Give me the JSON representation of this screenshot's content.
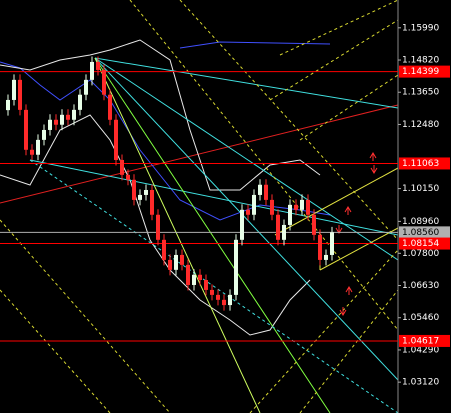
{
  "chart_data": {
    "type": "candlestick",
    "up_color": "#e8ffe8",
    "down_color": "#ff2a2a",
    "ylim": [
      1.02,
      1.17
    ],
    "yticks": [
      {
        "value": 1.1599,
        "label": "1.15990"
      },
      {
        "value": 1.1482,
        "label": "1.14820"
      },
      {
        "value": 1.1365,
        "label": "1.13650"
      },
      {
        "value": 1.1248,
        "label": "1.12480"
      },
      {
        "value": 1.1015,
        "label": "1.10150"
      },
      {
        "value": 1.0896,
        "label": "1.08960"
      },
      {
        "value": 1.078,
        "label": "1.07800"
      },
      {
        "value": 1.0663,
        "label": "1.06630"
      },
      {
        "value": 1.0546,
        "label": "1.05460"
      },
      {
        "value": 1.0429,
        "label": "1.04290"
      },
      {
        "value": 1.0312,
        "label": "1.03120"
      }
    ],
    "levels": [
      1.14399,
      1.11063,
      {
        "value": 1.0856,
        "label": "1.08560"
      },
      1.08154,
      1.04617
    ],
    "level_colors": [
      "#ff0000",
      "#ff0000",
      "#b0b0b0",
      "#ff0000",
      "#ff0000"
    ],
    "open": [
      1.13,
      1.1337,
      1.141,
      1.1301,
      1.1156,
      1.1138,
      1.1192,
      1.1228,
      1.1265,
      1.1247,
      1.1283,
      1.1265,
      1.1301,
      1.1356,
      1.141,
      1.1475,
      1.1446,
      1.1356,
      1.1265,
      1.1119,
      1.1065,
      1.1047,
      1.0974,
      1.0992,
      1.101,
      1.092,
      1.0829,
      1.0756,
      1.072,
      1.0774,
      1.0738,
      1.0665,
      1.0702,
      1.0683,
      1.0647,
      1.0629,
      1.0611,
      1.0592,
      1.0629,
      1.0829,
      1.0938,
      1.092,
      1.0992,
      1.1029,
      1.0974,
      1.092,
      1.0829,
      1.0883,
      1.0956,
      1.0938,
      1.0974,
      1.092,
      1.0847,
      1.0756,
      1.0774
    ],
    "high": [
      1.1357,
      1.143,
      1.143,
      1.1321,
      1.1176,
      1.1212,
      1.1248,
      1.1285,
      1.1285,
      1.1303,
      1.1303,
      1.1321,
      1.1376,
      1.143,
      1.1495,
      1.1495,
      1.1466,
      1.1376,
      1.1285,
      1.1139,
      1.1085,
      1.1067,
      1.1012,
      1.103,
      1.103,
      1.094,
      1.0849,
      1.0776,
      1.0794,
      1.0794,
      1.0758,
      1.0722,
      1.0722,
      1.0703,
      1.0667,
      1.0649,
      1.0631,
      1.0649,
      1.0849,
      1.0958,
      1.0958,
      1.1012,
      1.1049,
      1.1049,
      1.0994,
      1.094,
      1.0903,
      1.0976,
      1.0976,
      1.0994,
      1.0994,
      1.094,
      1.0867,
      1.0794,
      1.0876
    ],
    "low": [
      1.128,
      1.1317,
      1.1281,
      1.1136,
      1.1118,
      1.1118,
      1.1172,
      1.1208,
      1.1227,
      1.1227,
      1.1245,
      1.1245,
      1.1281,
      1.1336,
      1.139,
      1.1426,
      1.1336,
      1.1245,
      1.1099,
      1.1045,
      1.1027,
      1.0954,
      1.0954,
      1.0972,
      1.09,
      1.0809,
      1.0736,
      1.07,
      1.07,
      1.0718,
      1.0645,
      1.0645,
      1.0663,
      1.0627,
      1.0609,
      1.0591,
      1.0572,
      1.0572,
      1.0609,
      1.0809,
      1.09,
      1.09,
      1.0972,
      1.0954,
      1.09,
      1.0809,
      1.0809,
      1.0863,
      1.0918,
      1.0918,
      1.09,
      1.0827,
      1.0736,
      1.0736,
      1.0754
    ],
    "close": [
      1.1337,
      1.141,
      1.1301,
      1.1156,
      1.1138,
      1.1192,
      1.1228,
      1.1265,
      1.1247,
      1.1283,
      1.1265,
      1.1301,
      1.1356,
      1.141,
      1.1475,
      1.1446,
      1.1356,
      1.1265,
      1.1119,
      1.1065,
      1.1047,
      1.0974,
      1.0992,
      1.101,
      1.092,
      1.0829,
      1.0756,
      1.072,
      1.0774,
      1.0738,
      1.0665,
      1.0702,
      1.0683,
      1.0647,
      1.0629,
      1.0611,
      1.0592,
      1.0629,
      1.0829,
      1.0938,
      1.092,
      1.0992,
      1.1029,
      1.0974,
      1.092,
      1.0829,
      1.0883,
      1.0956,
      1.0938,
      1.0974,
      1.092,
      1.0847,
      1.0756,
      1.0774,
      1.0856
    ]
  }
}
